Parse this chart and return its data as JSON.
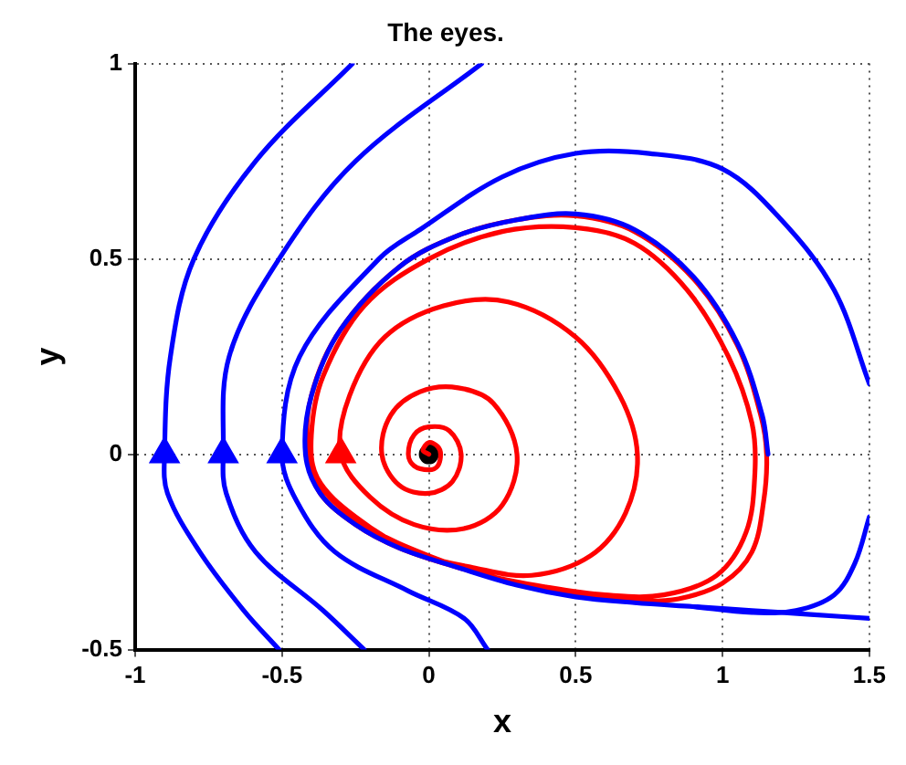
{
  "chart_data": {
    "type": "line",
    "title": "The eyes.",
    "xlabel": "x",
    "ylabel": "y",
    "xlim": [
      -1,
      1.5
    ],
    "ylim": [
      -0.5,
      1
    ],
    "xticks": [
      -1,
      -0.5,
      0,
      0.5,
      1,
      1.5
    ],
    "yticks": [
      -0.5,
      0,
      0.5,
      1
    ],
    "grid": true,
    "legend": false,
    "line_style": "solid",
    "series": [
      {
        "type": "line",
        "color": "#0000ff",
        "x": [
          -0.51,
          -0.63,
          -0.78,
          -0.89,
          -0.9,
          -0.88,
          -0.8,
          -0.59,
          -0.26
        ],
        "values": [
          -0.5,
          -0.4,
          -0.25,
          -0.1,
          0,
          0.25,
          0.5,
          0.75,
          1
        ]
      },
      {
        "type": "line",
        "color": "#0000ff",
        "x": [
          -0.22,
          -0.36,
          -0.59,
          -0.69,
          -0.7,
          -0.68,
          -0.51,
          -0.25,
          0.18
        ],
        "values": [
          -0.5,
          -0.4,
          -0.25,
          -0.1,
          0,
          0.25,
          0.5,
          0.75,
          1
        ]
      },
      {
        "type": "line",
        "color": "#0000ff",
        "x": [
          0.2,
          0.12,
          -0.07,
          -0.32,
          -0.45,
          -0.5,
          -0.44,
          -0.17,
          -0.03,
          0.25,
          0.5,
          0.75,
          1,
          1.2,
          1.38,
          1.5
        ],
        "values": [
          -0.5,
          -0.42,
          -0.35,
          -0.25,
          -0.12,
          0,
          0.25,
          0.5,
          0.575,
          0.71,
          0.77,
          0.77,
          0.73,
          0.6,
          0.42,
          0.18
        ]
      },
      {
        "type": "line",
        "color": "#0000ff",
        "x": [
          1.5,
          1.45,
          1.38,
          1.25,
          1.1,
          0.9
        ],
        "values": [
          -0.16,
          -0.28,
          -0.36,
          -0.4,
          -0.405,
          -0.39
        ]
      },
      {
        "type": "line",
        "color": "#0000ff",
        "x": [
          1.5,
          1.3,
          1.1,
          0.9,
          0.7,
          0.5,
          0.3,
          0.1,
          -0.1,
          -0.25,
          -0.37,
          -0.42,
          -0.4,
          -0.3,
          -0.1,
          0.1,
          0.3,
          0.5,
          0.7,
          0.9,
          1.05,
          1.135,
          1.155
        ],
        "values": [
          -0.42,
          -0.41,
          -0.4,
          -0.39,
          -0.38,
          -0.365,
          -0.335,
          -0.29,
          -0.24,
          -0.18,
          -0.1,
          0,
          0.15,
          0.32,
          0.48,
          0.56,
          0.6,
          0.615,
          0.575,
          0.455,
          0.285,
          0.1,
          0
        ]
      },
      {
        "type": "line",
        "color": "#ff0000",
        "x": [
          0,
          -0.02,
          0,
          0.03,
          0.04,
          0.03,
          0,
          -0.05,
          -0.07,
          -0.05,
          0,
          0.07,
          0.11,
          0.08,
          0,
          -0.1,
          -0.16,
          -0.13,
          -0.03,
          0.1,
          0.22,
          0.3,
          0.25,
          0.12,
          -0.05,
          -0.2,
          -0.3,
          -0.27,
          -0.15,
          0.05,
          0.27,
          0.5,
          0.65,
          0.71,
          0.67,
          0.55,
          0.35,
          0.15,
          -0.05,
          -0.25,
          -0.38,
          -0.4,
          -0.36,
          -0.22,
          0,
          0.25,
          0.5,
          0.7,
          0.88,
          1.02,
          1.1,
          1.11,
          1.08,
          0.98,
          0.8,
          0.6,
          0.4,
          0.2,
          0,
          -0.2,
          -0.35,
          -0.41,
          -0.4,
          -0.3,
          -0.1,
          0.1,
          0.3,
          0.5,
          0.7,
          0.9,
          1.05,
          1.13,
          1.15,
          1.14,
          1.1,
          1,
          0.85,
          0.7,
          0.5,
          0.3,
          0.1,
          -0.1,
          -0.25,
          -0.37,
          -0.42
        ],
        "values": [
          0,
          0.01,
          0.03,
          0.02,
          0,
          -0.03,
          -0.04,
          -0.03,
          0,
          0.05,
          0.07,
          0.06,
          0,
          -0.07,
          -0.1,
          -0.08,
          0,
          0.1,
          0.16,
          0.17,
          0.13,
          0,
          -0.13,
          -0.19,
          -0.18,
          -0.11,
          0,
          0.15,
          0.3,
          0.38,
          0.39,
          0.3,
          0.15,
          0,
          -0.15,
          -0.26,
          -0.31,
          -0.29,
          -0.25,
          -0.16,
          -0.06,
          0.05,
          0.2,
          0.38,
          0.5,
          0.57,
          0.58,
          0.54,
          0.42,
          0.25,
          0.08,
          -0.05,
          -0.2,
          -0.31,
          -0.36,
          -0.36,
          -0.34,
          -0.31,
          -0.26,
          -0.19,
          -0.1,
          0,
          0.15,
          0.32,
          0.48,
          0.56,
          0.6,
          0.61,
          0.57,
          0.45,
          0.28,
          0.1,
          0,
          -0.12,
          -0.25,
          -0.33,
          -0.37,
          -0.375,
          -0.36,
          -0.33,
          -0.29,
          -0.24,
          -0.18,
          -0.1,
          0
        ]
      },
      {
        "type": "scatter",
        "marker": "triangle",
        "colors": [
          "#0000ff",
          "#0000ff",
          "#0000ff",
          "#ff0000"
        ],
        "x": [
          -0.9,
          -0.7,
          -0.5,
          -0.3
        ],
        "values": [
          0,
          0,
          0,
          0
        ]
      },
      {
        "type": "scatter",
        "marker": "circle",
        "color": "#000000",
        "x": [
          0
        ],
        "values": [
          0
        ]
      }
    ]
  }
}
